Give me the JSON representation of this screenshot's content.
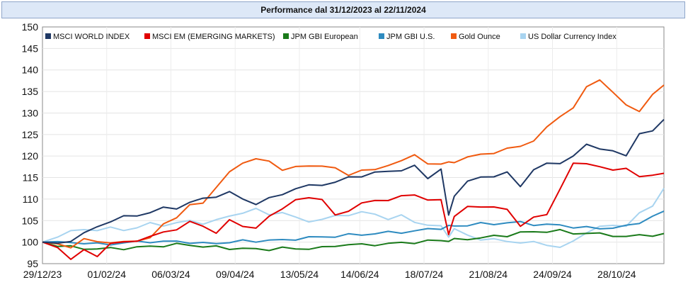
{
  "chart_data": {
    "type": "line",
    "title": "Performance dal 31/12/2023 al 22/11/2024",
    "xlabel": "",
    "ylabel": "",
    "ylim": [
      95,
      150
    ],
    "yticks": [
      95,
      100,
      105,
      110,
      115,
      120,
      125,
      130,
      135,
      140,
      145,
      150
    ],
    "xlim": [
      0,
      329
    ],
    "xticks": [
      {
        "label": "29/12/23",
        "day": 0
      },
      {
        "label": "01/02/24",
        "day": 34
      },
      {
        "label": "06/03/24",
        "day": 68
      },
      {
        "label": "09/04/24",
        "day": 102
      },
      {
        "label": "13/05/24",
        "day": 136
      },
      {
        "label": "14/06/24",
        "day": 168
      },
      {
        "label": "18/07/24",
        "day": 202
      },
      {
        "label": "21/08/24",
        "day": 236
      },
      {
        "label": "24/09/24",
        "day": 270
      },
      {
        "label": "28/10/24",
        "day": 304
      }
    ],
    "x": [
      0,
      8,
      15,
      22,
      29,
      36,
      43,
      50,
      57,
      64,
      71,
      78,
      85,
      92,
      99,
      106,
      113,
      120,
      127,
      134,
      141,
      148,
      155,
      162,
      169,
      176,
      183,
      190,
      197,
      204,
      211,
      215,
      218,
      225,
      232,
      239,
      246,
      253,
      260,
      267,
      274,
      281,
      288,
      295,
      302,
      309,
      316,
      323,
      329
    ],
    "series": [
      {
        "name": "MSCI WORLD INDEX",
        "color": "#1f3864",
        "values": [
          100.0,
          99.5,
          100.5,
          102.0,
          103.5,
          105.0,
          105.8,
          106.2,
          107.0,
          107.8,
          108.0,
          109.2,
          110.0,
          110.8,
          111.5,
          110.0,
          109.0,
          110.0,
          111.2,
          112.5,
          113.0,
          113.5,
          113.8,
          115.0,
          115.5,
          116.0,
          116.5,
          116.8,
          117.5,
          115.0,
          117.0,
          106.0,
          111.0,
          114.0,
          115.0,
          115.5,
          116.0,
          113.0,
          117.0,
          118.0,
          118.5,
          120.0,
          122.5,
          122.0,
          121.0,
          120.0,
          125.5,
          125.5,
          128.5
        ]
      },
      {
        "name": "MSCI EM (EMERGING MARKETS)",
        "color": "#e00000",
        "values": [
          100.0,
          99.0,
          96.0,
          98.0,
          97.0,
          99.5,
          100.0,
          100.5,
          101.0,
          102.5,
          103.0,
          104.5,
          104.0,
          102.0,
          105.0,
          104.0,
          103.0,
          106.0,
          108.0,
          109.5,
          110.5,
          110.0,
          106.0,
          107.5,
          109.0,
          109.5,
          110.0,
          110.5,
          111.0,
          110.0,
          109.5,
          102.0,
          106.0,
          108.0,
          108.5,
          108.0,
          107.5,
          104.0,
          105.5,
          106.5,
          112.5,
          118.0,
          118.5,
          117.5,
          116.5,
          117.5,
          115.0,
          115.5,
          116.0
        ]
      },
      {
        "name": "JPM GBI European",
        "color": "#1a7a1a",
        "values": [
          100.0,
          99.2,
          98.8,
          98.6,
          98.4,
          98.5,
          98.6,
          98.7,
          99.0,
          99.2,
          99.4,
          99.4,
          99.0,
          98.8,
          98.6,
          98.5,
          98.3,
          98.4,
          98.6,
          98.4,
          98.6,
          98.6,
          99.2,
          99.5,
          99.3,
          99.5,
          99.6,
          99.8,
          100.0,
          100.2,
          100.4,
          100.4,
          100.5,
          100.8,
          101.0,
          101.3,
          101.6,
          102.2,
          102.3,
          102.6,
          102.6,
          102.0,
          102.2,
          101.8,
          101.6,
          101.3,
          101.5,
          101.7,
          102.0
        ]
      },
      {
        "name": "JPM GBI U.S.",
        "color": "#2e8bc0",
        "values": [
          100.0,
          99.8,
          100.0,
          99.8,
          99.5,
          99.6,
          99.8,
          100.0,
          100.2,
          100.0,
          100.2,
          100.0,
          99.6,
          99.8,
          100.0,
          100.2,
          100.3,
          100.4,
          100.4,
          100.8,
          101.0,
          101.2,
          101.4,
          101.6,
          101.8,
          102.0,
          102.2,
          102.4,
          102.5,
          103.0,
          103.3,
          103.6,
          103.8,
          104.0,
          104.2,
          104.3,
          104.5,
          104.5,
          104.2,
          104.0,
          103.9,
          103.6,
          103.3,
          103.2,
          103.4,
          103.6,
          104.6,
          106.0,
          107.2
        ]
      },
      {
        "name": "Gold Ounce",
        "color": "#f05a10",
        "values": [
          100.0,
          99.5,
          99.0,
          100.5,
          100.2,
          100.0,
          99.8,
          100.5,
          101.0,
          104.0,
          106.0,
          108.5,
          109.0,
          113.0,
          116.0,
          118.5,
          119.5,
          118.5,
          117.0,
          117.5,
          117.5,
          118.0,
          117.0,
          115.5,
          117.0,
          116.5,
          118.0,
          119.0,
          120.0,
          118.5,
          118.0,
          118.5,
          118.8,
          119.5,
          120.5,
          120.8,
          121.5,
          122.5,
          123.5,
          126.5,
          129.5,
          131.0,
          136.0,
          138.0,
          134.5,
          132.0,
          130.5,
          134.0,
          136.5
        ]
      },
      {
        "name": "US Dollar Currency Index",
        "color": "#a8d4f0",
        "values": [
          100.0,
          101.5,
          102.5,
          102.8,
          103.0,
          103.2,
          102.8,
          103.5,
          104.2,
          104.0,
          104.5,
          104.8,
          104.5,
          105.0,
          106.0,
          107.0,
          107.5,
          106.5,
          107.0,
          105.5,
          105.0,
          105.2,
          106.0,
          106.5,
          106.8,
          106.5,
          105.5,
          106.0,
          104.8,
          104.0,
          103.5,
          101.5,
          103.0,
          101.5,
          100.8,
          100.5,
          100.2,
          100.0,
          99.8,
          99.5,
          98.8,
          100.0,
          102.5,
          103.5,
          103.8,
          104.0,
          106.5,
          108.5,
          112.5
        ]
      }
    ],
    "legend": "top-left",
    "grid": true
  }
}
